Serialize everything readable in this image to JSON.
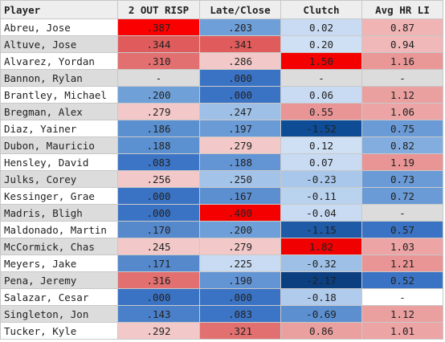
{
  "headers": [
    "Player",
    "2 OUT RISP",
    "Late/Close",
    "Clutch",
    "Avg HR LI"
  ],
  "rows": [
    {
      "player": "Abreu, Jose",
      "c": [
        {
          "v": ".387",
          "bg": "#fa0000"
        },
        {
          "v": ".203",
          "bg": "#6f9fd8"
        },
        {
          "v": "0.02",
          "bg": "#c8dbf2"
        },
        {
          "v": "0.87",
          "bg": "#f0b4b4"
        }
      ]
    },
    {
      "player": "Altuve, Jose",
      "c": [
        {
          "v": ".344",
          "bg": "#e05c5c"
        },
        {
          "v": ".341",
          "bg": "#e05c5c"
        },
        {
          "v": "0.20",
          "bg": "#cfe0f4"
        },
        {
          "v": "0.94",
          "bg": "#f0b8b8"
        }
      ]
    },
    {
      "player": "Alvarez, Yordan",
      "c": [
        {
          "v": ".310",
          "bg": "#e27070"
        },
        {
          "v": ".286",
          "bg": "#f2c8c8"
        },
        {
          "v": "1.50",
          "bg": "#f50000"
        },
        {
          "v": "1.16",
          "bg": "#e99797"
        }
      ]
    },
    {
      "player": "Bannon, Rylan",
      "c": [
        {
          "v": "-",
          "bg": "#dcdcdc"
        },
        {
          "v": ".000",
          "bg": "#3b73c4"
        },
        {
          "v": "-",
          "bg": "#dcdcdc"
        },
        {
          "v": "-",
          "bg": "#dcdcdc"
        }
      ]
    },
    {
      "player": "Brantley, Michael",
      "c": [
        {
          "v": ".200",
          "bg": "#6fa0d8"
        },
        {
          "v": ".000",
          "bg": "#3b73c4"
        },
        {
          "v": "0.06",
          "bg": "#c8dbf2"
        },
        {
          "v": "1.12",
          "bg": "#eba0a0"
        }
      ]
    },
    {
      "player": "Bregman, Alex",
      "c": [
        {
          "v": ".279",
          "bg": "#f2c8c8"
        },
        {
          "v": ".247",
          "bg": "#9ec0e6"
        },
        {
          "v": "0.55",
          "bg": "#e99595"
        },
        {
          "v": "1.06",
          "bg": "#eca4a4"
        }
      ]
    },
    {
      "player": "Diaz, Yainer",
      "c": [
        {
          "v": ".186",
          "bg": "#5a8fd0"
        },
        {
          "v": ".197",
          "bg": "#6a9bd6"
        },
        {
          "v": "-1.52",
          "bg": "#0f4c96"
        },
        {
          "v": "0.75",
          "bg": "#6a9bd6"
        }
      ]
    },
    {
      "player": "Dubon, Mauricio",
      "c": [
        {
          "v": ".188",
          "bg": "#5b90d1"
        },
        {
          "v": ".279",
          "bg": "#f2c8c8"
        },
        {
          "v": "0.12",
          "bg": "#cfe0f4"
        },
        {
          "v": "0.82",
          "bg": "#84addf"
        }
      ]
    },
    {
      "player": "Hensley, David",
      "c": [
        {
          "v": ".083",
          "bg": "#3d75c6"
        },
        {
          "v": ".188",
          "bg": "#6394d4"
        },
        {
          "v": "0.07",
          "bg": "#c8dbf2"
        },
        {
          "v": "1.19",
          "bg": "#e99595"
        }
      ]
    },
    {
      "player": "Julks, Corey",
      "c": [
        {
          "v": ".256",
          "bg": "#f2c8c8"
        },
        {
          "v": ".250",
          "bg": "#a3c3e8"
        },
        {
          "v": "-0.23",
          "bg": "#a9c7ea"
        },
        {
          "v": "0.73",
          "bg": "#6a9bd6"
        }
      ]
    },
    {
      "player": "Kessinger, Grae",
      "c": [
        {
          "v": ".000",
          "bg": "#3b73c4"
        },
        {
          "v": ".167",
          "bg": "#5b8fd0"
        },
        {
          "v": "-0.11",
          "bg": "#b9d2ee"
        },
        {
          "v": "0.72",
          "bg": "#6a9bd6"
        }
      ]
    },
    {
      "player": "Madris, Bligh",
      "c": [
        {
          "v": ".000",
          "bg": "#3b73c4"
        },
        {
          "v": ".400",
          "bg": "#f50000"
        },
        {
          "v": "-0.04",
          "bg": "#c8dbf2"
        },
        {
          "v": "-",
          "bg": "#dcdcdc"
        }
      ]
    },
    {
      "player": "Maldonado, Martin",
      "c": [
        {
          "v": ".170",
          "bg": "#5589cc"
        },
        {
          "v": ".200",
          "bg": "#6f9fd8"
        },
        {
          "v": "-1.15",
          "bg": "#1e5aa6"
        },
        {
          "v": "0.57",
          "bg": "#3b73c4"
        }
      ]
    },
    {
      "player": "McCormick, Chas",
      "c": [
        {
          "v": ".245",
          "bg": "#f2c8c8"
        },
        {
          "v": ".279",
          "bg": "#f2c8c8"
        },
        {
          "v": "1.82",
          "bg": "#f00000"
        },
        {
          "v": "1.03",
          "bg": "#eca4a4"
        }
      ]
    },
    {
      "player": "Meyers, Jake",
      "c": [
        {
          "v": ".171",
          "bg": "#5589cc"
        },
        {
          "v": ".225",
          "bg": "#c8dbf2"
        },
        {
          "v": "-0.32",
          "bg": "#9ec0e6"
        },
        {
          "v": "1.21",
          "bg": "#e99595"
        }
      ]
    },
    {
      "player": "Pena, Jeremy",
      "c": [
        {
          "v": ".316",
          "bg": "#e27070"
        },
        {
          "v": ".190",
          "bg": "#6394d4"
        },
        {
          "v": "-2.17",
          "bg": "#0b3f80"
        },
        {
          "v": "0.52",
          "bg": "#3b73c4"
        }
      ]
    },
    {
      "player": "Salazar, Cesar",
      "c": [
        {
          "v": ".000",
          "bg": "#3b73c4"
        },
        {
          "v": ".000",
          "bg": "#3b73c4"
        },
        {
          "v": "-0.18",
          "bg": "#b0cbec"
        },
        {
          "v": "-",
          "bg": "#ffffff"
        }
      ]
    },
    {
      "player": "Singleton, Jon",
      "c": [
        {
          "v": ".143",
          "bg": "#4a80c9"
        },
        {
          "v": ".083",
          "bg": "#3d75c6"
        },
        {
          "v": "-0.69",
          "bg": "#5b8fd0"
        },
        {
          "v": "1.12",
          "bg": "#eba0a0"
        }
      ]
    },
    {
      "player": "Tucker, Kyle",
      "c": [
        {
          "v": ".292",
          "bg": "#f2c8c8"
        },
        {
          "v": ".321",
          "bg": "#e27070"
        },
        {
          "v": "0.86",
          "bg": "#eba0a0"
        },
        {
          "v": "1.01",
          "bg": "#eca4a4"
        }
      ]
    }
  ]
}
